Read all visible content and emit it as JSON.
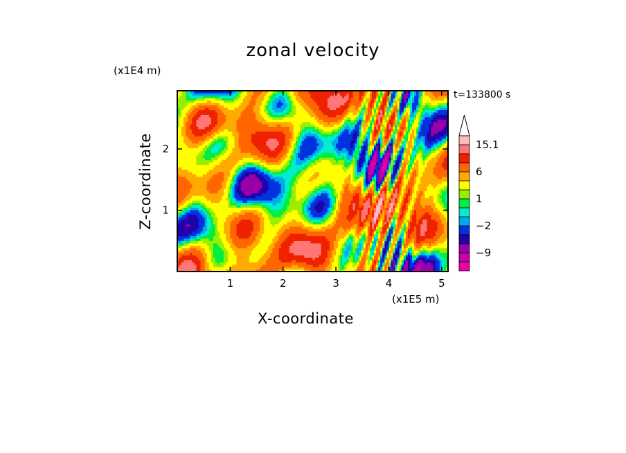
{
  "chart_data": {
    "type": "heatmap",
    "title": "zonal velocity",
    "xlabel": "X-coordinate",
    "ylabel": "Z-coordinate",
    "x_unit": "(x1E5 m)",
    "z_unit": "(x1E4 m)",
    "time_label": "t=133800 s",
    "xlim": [
      0,
      5.12
    ],
    "ylim": [
      0,
      2.95
    ],
    "x_ticks": [
      {
        "value": 1,
        "label": "1"
      },
      {
        "value": 2,
        "label": "2"
      },
      {
        "value": 3,
        "label": "3"
      },
      {
        "value": 4,
        "label": "4"
      },
      {
        "value": 5,
        "label": "5"
      }
    ],
    "y_ticks": [
      {
        "value": 1,
        "label": "1"
      },
      {
        "value": 2,
        "label": "2"
      }
    ],
    "colorbar": {
      "levels": [
        -15,
        -12,
        -9,
        -6,
        -4,
        -2,
        -1,
        0,
        1,
        2,
        4,
        6,
        9,
        12,
        15.1
      ],
      "colors": [
        "#ee00aa",
        "#cc00aa",
        "#9900aa",
        "#2200aa",
        "#0033dd",
        "#00aaee",
        "#00eecc",
        "#00ee44",
        "#99ee00",
        "#ffff00",
        "#ffaa00",
        "#ff6600",
        "#ee2200",
        "#ff7777",
        "#ffbbbb"
      ],
      "labels": [
        {
          "value": 15.1,
          "label": "15.1"
        },
        {
          "value": 6,
          "label": "6"
        },
        {
          "value": 1,
          "label": "1"
        },
        {
          "value": -2,
          "label": "−2"
        },
        {
          "value": -9,
          "label": "−9"
        }
      ]
    },
    "grid": false,
    "legend": "colorbar-right"
  }
}
